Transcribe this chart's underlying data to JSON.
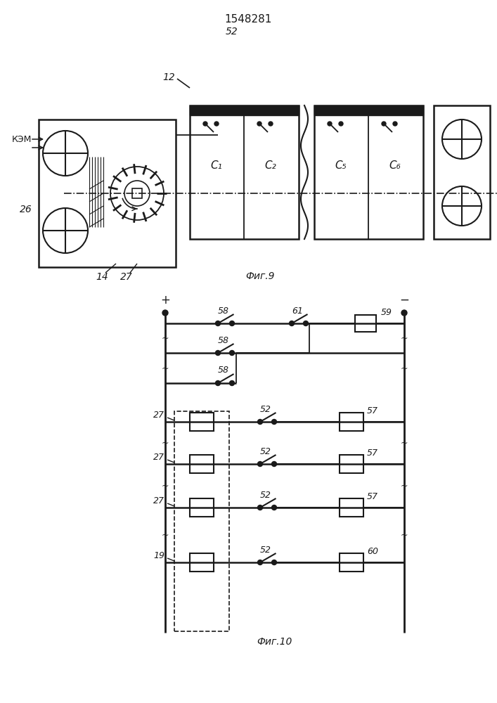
{
  "bg_color": "#ffffff",
  "line_color": "#1a1a1a",
  "title": "1548281",
  "fig9_label": "Фиг.9",
  "fig10_label": "Фиг.10"
}
